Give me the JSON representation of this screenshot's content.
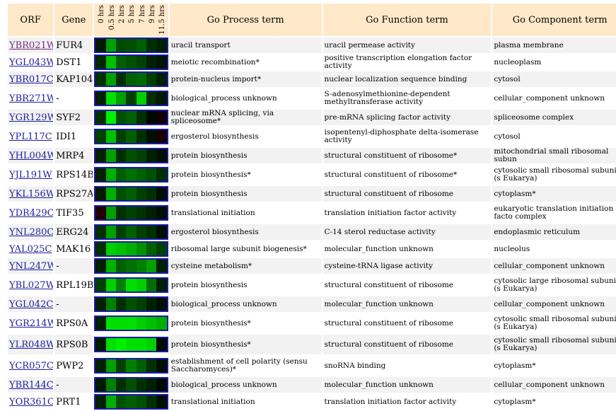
{
  "headers": {
    "orf": "ORF",
    "gene": "Gene",
    "process": "Go Process term",
    "function": "Go Function term",
    "component": "Go Component term",
    "timepoints": [
      "0 hrs",
      "0.5 hrs",
      "2 hrs",
      "5 hrs",
      "7 hrs",
      "9 hrs",
      "11.5 hrs"
    ]
  },
  "rows": [
    {
      "orf": "YBR021W",
      "gene": "FUR4",
      "process": "uracil transport",
      "function": "uracil permease activity",
      "component": "plasma membrane",
      "visited": true,
      "tall": false,
      "colors": [
        "#001a00",
        "#00a000",
        "#004a00",
        "#005000",
        "#006000",
        "#003000",
        "#002000"
      ]
    },
    {
      "orf": "YGL043W",
      "gene": "DST1",
      "process": "meiotic recombination*",
      "function": "positive transcription elongation factor activity",
      "component": "nucleoplasm",
      "visited": false,
      "tall": false,
      "colors": [
        "#002800",
        "#00c000",
        "#006000",
        "#005000",
        "#004000",
        "#002000",
        "#001400"
      ]
    },
    {
      "orf": "YBR017C",
      "gene": "KAP104",
      "process": "protein-nucleus import*",
      "function": "nuclear localization sequence binding",
      "component": "cytosol",
      "visited": false,
      "tall": false,
      "colors": [
        "#003000",
        "#00a000",
        "#003000",
        "#006000",
        "#006a00",
        "#004000",
        "#002000"
      ]
    },
    {
      "orf": "YBR271W",
      "gene": "-",
      "process": "biological_process unknown",
      "function": "S-adenosylmethionine-dependent methyltransferase activity",
      "component": "cellular_component unknown",
      "visited": false,
      "tall": true,
      "colors": [
        "#002000",
        "#00e000",
        "#00a000",
        "#004000",
        "#00d000",
        "#003000",
        "#001a00"
      ]
    },
    {
      "orf": "YGR129W",
      "gene": "SYF2",
      "process": "nuclear mRNA splicing, via spliceosome*",
      "function": "pre-mRNA splicing factor activity",
      "component": "spliceosome complex",
      "visited": false,
      "tall": false,
      "colors": [
        "#003000",
        "#00f000",
        "#005000",
        "#006000",
        "#003000",
        "#000800",
        "#100000"
      ]
    },
    {
      "orf": "YPL117C",
      "gene": "IDI1",
      "process": "ergosterol biosynthesis",
      "function": "isopentenyl-diphosphate delta-isomerase activity",
      "component": "cytosol",
      "visited": false,
      "tall": true,
      "colors": [
        "#004000",
        "#00c000",
        "#004000",
        "#006000",
        "#003000",
        "#001000",
        "#180000"
      ]
    },
    {
      "orf": "YHL004W",
      "gene": "MRP4",
      "process": "protein biosynthesis",
      "function": "structural constituent of ribosome*",
      "component": "mitochondrial small ribosomal subun",
      "visited": false,
      "tall": false,
      "colors": [
        "#002000",
        "#00a000",
        "#003000",
        "#005000",
        "#004000",
        "#002000",
        "#001000"
      ]
    },
    {
      "orf": "YJL191W",
      "gene": "RPS14B",
      "process": "protein biosynthesis*",
      "function": "structural constituent of ribosome*",
      "component": "cytosolic small ribosomal subunit (s Eukarya)",
      "visited": false,
      "tall": true,
      "colors": [
        "#002000",
        "#00b000",
        "#006000",
        "#007000",
        "#006000",
        "#005000",
        "#003000"
      ]
    },
    {
      "orf": "YKL156W",
      "gene": "RPS27A",
      "process": "protein biosynthesis",
      "function": "structural constituent of ribosome",
      "component": "cytoplasm*",
      "visited": false,
      "tall": false,
      "colors": [
        "#001a00",
        "#00b000",
        "#005000",
        "#006000",
        "#004000",
        "#003000",
        "#001000"
      ]
    },
    {
      "orf": "YDR429C",
      "gene": "TIF35",
      "process": "translational initiation",
      "function": "translation initiation factor activity",
      "component": "eukaryotic translation initiation facto complex",
      "visited": false,
      "tall": true,
      "colors": [
        "#200000",
        "#00a000",
        "#003000",
        "#004000",
        "#003000",
        "#002000",
        "#001000"
      ]
    },
    {
      "orf": "YNL280C",
      "gene": "ERG24",
      "process": "ergosterol biosynthesis",
      "function": "C-14 sterol reductase activity",
      "component": "endoplasmic reticulum",
      "visited": false,
      "tall": false,
      "colors": [
        "#003000",
        "#00a000",
        "#004000",
        "#006000",
        "#004000",
        "#003000",
        "#001000"
      ]
    },
    {
      "orf": "YAL025C",
      "gene": "MAK16",
      "process": "ribosomal large subunit biogenesis*",
      "function": "molecular_function unknown",
      "component": "nucleolus",
      "visited": false,
      "tall": false,
      "colors": [
        "#003000",
        "#00d000",
        "#00c000",
        "#00b000",
        "#009000",
        "#006000",
        "#004000"
      ]
    },
    {
      "orf": "YNL247W",
      "gene": "-",
      "process": "cysteine metabolism*",
      "function": "cysteine-tRNA ligase activity",
      "component": "cellular_component unknown",
      "visited": false,
      "tall": false,
      "colors": [
        "#002000",
        "#00b000",
        "#006000",
        "#007000",
        "#008000",
        "#00a000",
        "#002000"
      ]
    },
    {
      "orf": "YBL027W",
      "gene": "RPL19B",
      "process": "protein biosynthesis",
      "function": "structural constituent of ribosome",
      "component": "cytosolic large ribosomal subunit (s Eukarya)",
      "visited": false,
      "tall": true,
      "colors": [
        "#004000",
        "#00d000",
        "#008000",
        "#00e000",
        "#00d000",
        "#007000",
        "#002000"
      ]
    },
    {
      "orf": "YGL042C",
      "gene": "-",
      "process": "biological_process unknown",
      "function": "molecular_function unknown",
      "component": "cellular_component unknown",
      "visited": false,
      "tall": false,
      "colors": [
        "#002000",
        "#008000",
        "#003000",
        "#005000",
        "#004000",
        "#002000",
        "#001000"
      ]
    },
    {
      "orf": "YGR214W",
      "gene": "RPS0A",
      "process": "protein biosynthesis*",
      "function": "structural constituent of ribosome",
      "component": "cytosolic small ribosomal subunit (s Eukarya)",
      "visited": false,
      "tall": true,
      "colors": [
        "#002000",
        "#00e000",
        "#00e000",
        "#00e000",
        "#00d000",
        "#00c000",
        "#00b000"
      ]
    },
    {
      "orf": "YLR048W",
      "gene": "RPS0B",
      "process": "protein biosynthesis*",
      "function": "structural constituent of ribosome",
      "component": "cytosolic small ribosomal subunit (s Eukarya)",
      "visited": false,
      "tall": true,
      "colors": [
        "#001a00",
        "#00e000",
        "#00f000",
        "#00e000",
        "#00e000",
        "#00d000",
        "#000a00"
      ]
    },
    {
      "orf": "YCR057C",
      "gene": "PWP2",
      "process": "establishment of cell polarity (sensu Saccharomyces)*",
      "function": "snoRNA binding",
      "component": "cytoplasm*",
      "visited": false,
      "tall": true,
      "colors": [
        "#002000",
        "#00a000",
        "#004000",
        "#008000",
        "#006000",
        "#003000",
        "#001000"
      ]
    },
    {
      "orf": "YBR144C",
      "gene": "-",
      "process": "biological_process unknown",
      "function": "molecular_function unknown",
      "component": "cellular_component unknown",
      "visited": false,
      "tall": false,
      "colors": [
        "#001a00",
        "#008000",
        "#003000",
        "#005000",
        "#003000",
        "#002000",
        "#000a00"
      ]
    },
    {
      "orf": "YOR361C",
      "gene": "PRT1",
      "process": "translational initiation",
      "function": "translation initiation factor activity",
      "component": "cytoplasm*",
      "visited": false,
      "tall": false,
      "colors": [
        "#002000",
        "#00b000",
        "#005000",
        "#006000",
        "#005000",
        "#003000",
        "#001000"
      ]
    }
  ]
}
